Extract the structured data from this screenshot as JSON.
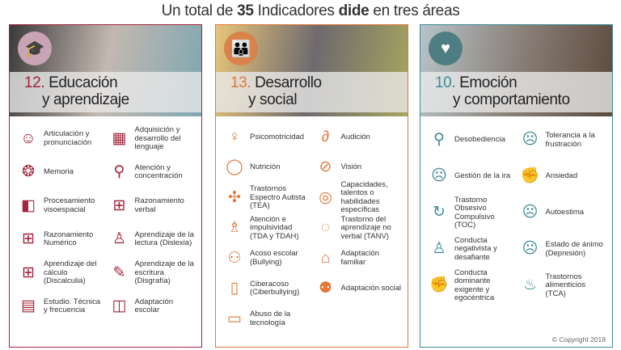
{
  "title": {
    "pre": "Un total de ",
    "count": "35",
    "mid": " Indicadores ",
    "brand": "dide",
    "post": " en tres áreas"
  },
  "panels": [
    {
      "number": "12.",
      "line1": "Educación",
      "line2": "y aprendizaje",
      "color": "#a3243b",
      "icon": "graduation-cap-icon",
      "badge_color": "#c9a4b4",
      "hero_colors": [
        "#3a3a3a",
        "#c3b8b0",
        "#7fa7b2"
      ],
      "items": [
        {
          "label": "Articulación y pronunciación",
          "icon": "speaking-head-icon"
        },
        {
          "label": "Adquisición y desarrollo del lenguaje",
          "icon": "abc-blocks-icon"
        },
        {
          "label": "Memoria",
          "icon": "brain-icon"
        },
        {
          "label": "Atención y concentración",
          "icon": "magnifier-head-icon"
        },
        {
          "label": "Procesamiento visoespacial",
          "icon": "cube-head-icon"
        },
        {
          "label": "Razonamiento verbal",
          "icon": "letter-grid-icon"
        },
        {
          "label": "Razonamiento Numérico",
          "icon": "number-grid-icon"
        },
        {
          "label": "Aprendizaje de la lectura (Dislexia)",
          "icon": "reading-person-icon"
        },
        {
          "label": "Aprendizaje del cálculo (Discalculia)",
          "icon": "calculator-icon"
        },
        {
          "label": "Aprendizaje de la escritura (Disgrafía)",
          "icon": "writing-pencil-icon"
        },
        {
          "label": "Estudio. Técnica y frecuencia",
          "icon": "notebook-icon"
        },
        {
          "label": "Adaptación escolar",
          "icon": "backpack-icon"
        }
      ]
    },
    {
      "number": "13.",
      "line1": "Desarrollo",
      "line2": "y social",
      "color": "#e0793a",
      "icon": "people-group-icon",
      "badge_color": "#d9834a",
      "hero_colors": [
        "#e8c57a",
        "#6e6a6e",
        "#a7a560"
      ],
      "items": [
        {
          "label": "Psicomotricidad",
          "icon": "jumping-person-icon"
        },
        {
          "label": "Audición",
          "icon": "ear-crossed-icon"
        },
        {
          "label": "Nutrición",
          "icon": "apple-icon"
        },
        {
          "label": "Visión",
          "icon": "eye-crossed-icon"
        },
        {
          "label": "Trastornos Espectro Autista (TEA)",
          "icon": "puzzle-icon"
        },
        {
          "label": "Capacidades, talentos o habilidades específicas",
          "icon": "lightbulb-brain-icon"
        },
        {
          "label": "Atención e impulsividad (TDA y TDAH)",
          "icon": "spinning-person-icon"
        },
        {
          "label": "Trastorno del aprendizaje no verbal (TANV)",
          "icon": "blank-face-icon"
        },
        {
          "label": "Acoso escolar (Bullying)",
          "icon": "two-people-icon"
        },
        {
          "label": "Adaptación familiar",
          "icon": "house-icon"
        },
        {
          "label": "Ciberacoso (Ciberbullying)",
          "icon": "sad-phone-icon"
        },
        {
          "label": "Adaptación social",
          "icon": "crowd-icon"
        },
        {
          "label": "Abuso de la tecnología",
          "icon": "laptop-clock-icon"
        }
      ]
    },
    {
      "number": "10.",
      "line1": "Emoción",
      "line2": "y comportamiento",
      "color": "#3d8a96",
      "icon": "heart-icon",
      "badge_color": "#4f7e82",
      "hero_colors": [
        "#b7c3c8",
        "#8a8078",
        "#5b4a3d"
      ],
      "items": [
        {
          "label": "Desobediencia",
          "icon": "person-no-icon"
        },
        {
          "label": "Tolerancia a la frustración",
          "icon": "frustrated-head-icon"
        },
        {
          "label": "Gestión de la ira",
          "icon": "angry-face-icon"
        },
        {
          "label": "Ansiedad",
          "icon": "clenched-fist-icon"
        },
        {
          "label": "Trastorno Obsesivo Compulsivo (TOC)",
          "icon": "loop-head-icon"
        },
        {
          "label": "Autoestima",
          "icon": "sad-face-icon"
        },
        {
          "label": "Conducta negativista y desafiante",
          "icon": "crossed-arms-person-icon"
        },
        {
          "label": "Estado de ánimo (Depresión)",
          "icon": "crying-face-icon"
        },
        {
          "label": "Conducta dominante exigente y egocéntrica",
          "icon": "raised-fist-icon"
        },
        {
          "label": "Trastornos alimenticios (TCA)",
          "icon": "cupcake-icon"
        }
      ]
    }
  ],
  "copyright": "© Copyright 2018"
}
